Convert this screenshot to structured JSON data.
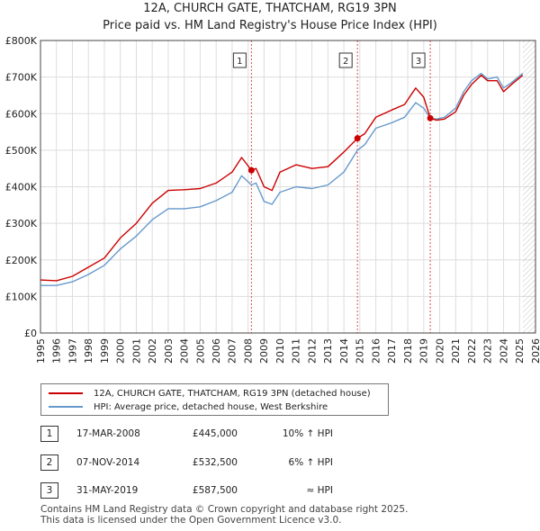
{
  "title": [
    "12A, CHURCH GATE, THATCHAM, RG19 3PN",
    "Price paid vs. HM Land Registry's House Price Index (HPI)"
  ],
  "colors": {
    "price": "#cc0000",
    "hpi": "#6699cc",
    "grid": "#dddddd",
    "future_hatch": "#aaaaaa",
    "marker_line": "#cc0000"
  },
  "chart_data": {
    "type": "line",
    "title": "12A, CHURCH GATE, THATCHAM, RG19 3PN — Price paid vs. HM Land Registry's House Price Index (HPI)",
    "xlabel": "",
    "ylabel": "",
    "xlim": [
      1995,
      2026
    ],
    "ylim": [
      0,
      800000
    ],
    "x_ticks": [
      1995,
      1996,
      1997,
      1998,
      1999,
      2000,
      2001,
      2002,
      2003,
      2004,
      2005,
      2006,
      2007,
      2008,
      2009,
      2010,
      2011,
      2012,
      2013,
      2014,
      2015,
      2016,
      2017,
      2018,
      2019,
      2020,
      2021,
      2022,
      2023,
      2024,
      2025,
      2026
    ],
    "y_ticks": [
      0,
      100000,
      200000,
      300000,
      400000,
      500000,
      600000,
      700000,
      800000
    ],
    "y_tick_labels": [
      "£0",
      "£100K",
      "£200K",
      "£300K",
      "£400K",
      "£500K",
      "£600K",
      "£700K",
      "£800K"
    ],
    "data_end": 2025.2,
    "series": [
      {
        "name": "12A, CHURCH GATE, THATCHAM, RG19 3PN (detached house)",
        "x": [
          1995,
          1996,
          1997,
          1998,
          1999,
          2000,
          2001,
          2002,
          2003,
          2004,
          2005,
          2006,
          2007,
          2007.6,
          2008.21,
          2008.5,
          2009.0,
          2009.5,
          2010,
          2011,
          2012,
          2013,
          2014,
          2014.85,
          2015.3,
          2016,
          2017,
          2017.8,
          2018.5,
          2019.0,
          2019.41,
          2019.8,
          2020.3,
          2021,
          2021.5,
          2022,
          2022.6,
          2023,
          2023.6,
          2024,
          2024.5,
          2025.2
        ],
        "values": [
          145000,
          143000,
          155000,
          180000,
          205000,
          260000,
          300000,
          355000,
          390000,
          392000,
          395000,
          410000,
          440000,
          480000,
          445000,
          450000,
          400000,
          390000,
          440000,
          460000,
          450000,
          455000,
          495000,
          532500,
          545000,
          590000,
          610000,
          625000,
          670000,
          645000,
          587500,
          582000,
          585000,
          605000,
          650000,
          680000,
          705000,
          690000,
          690000,
          660000,
          680000,
          705000
        ]
      },
      {
        "name": "HPI: Average price, detached house, West Berkshire",
        "x": [
          1995,
          1996,
          1997,
          1998,
          1999,
          2000,
          2001,
          2002,
          2003,
          2004,
          2005,
          2006,
          2007,
          2007.6,
          2008.21,
          2008.5,
          2009.0,
          2009.5,
          2010,
          2011,
          2012,
          2013,
          2014,
          2014.85,
          2015.3,
          2016,
          2017,
          2017.8,
          2018.5,
          2019.0,
          2019.41,
          2019.8,
          2020.3,
          2021,
          2021.5,
          2022,
          2022.6,
          2023,
          2023.6,
          2024,
          2024.5,
          2025.2
        ],
        "values": [
          130000,
          130000,
          140000,
          160000,
          185000,
          230000,
          265000,
          310000,
          340000,
          340000,
          345000,
          362000,
          385000,
          430000,
          405000,
          410000,
          360000,
          352000,
          385000,
          400000,
          395000,
          405000,
          440000,
          500000,
          515000,
          560000,
          575000,
          590000,
          630000,
          615000,
          587000,
          585000,
          590000,
          615000,
          660000,
          690000,
          710000,
          695000,
          700000,
          670000,
          685000,
          710000
        ]
      }
    ],
    "annotations": [
      {
        "label": "1",
        "x": 2008.21,
        "y": 445000
      },
      {
        "label": "2",
        "x": 2014.85,
        "y": 532500
      },
      {
        "label": "3",
        "x": 2019.41,
        "y": 587500
      }
    ]
  },
  "legend": [
    "12A, CHURCH GATE, THATCHAM, RG19 3PN (detached house)",
    "HPI: Average price, detached house, West Berkshire"
  ],
  "transactions": [
    {
      "num": "1",
      "date": "17-MAR-2008",
      "price": "£445,000",
      "hpi": "10% ↑ HPI"
    },
    {
      "num": "2",
      "date": "07-NOV-2014",
      "price": "£532,500",
      "hpi": "6% ↑ HPI"
    },
    {
      "num": "3",
      "date": "31-MAY-2019",
      "price": "£587,500",
      "hpi": "≈ HPI"
    }
  ],
  "footer": [
    "Contains HM Land Registry data © Crown copyright and database right 2025.",
    "This data is licensed under the Open Government Licence v3.0."
  ]
}
